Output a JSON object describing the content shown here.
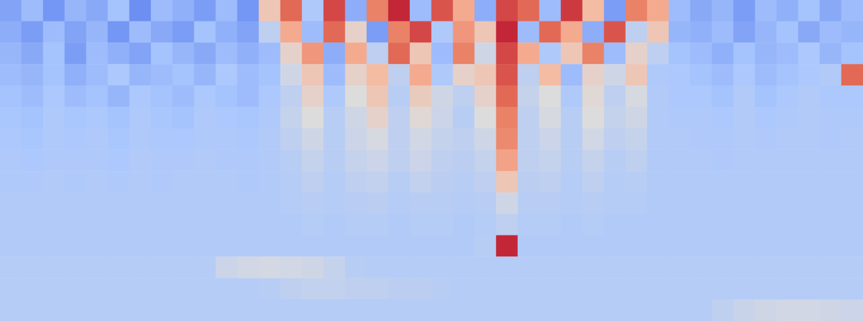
{
  "chart_data": {
    "type": "heatmap",
    "tick_labels": false,
    "zlim": [
      0,
      100
    ],
    "cells": [
      [
        22,
        30,
        18,
        28,
        24,
        32,
        16,
        30,
        26,
        20,
        30,
        18,
        60,
        85,
        35,
        90,
        25,
        80,
        95,
        30,
        88,
        70,
        25,
        90,
        85,
        30,
        92,
        65,
        20,
        80,
        70,
        30,
        24,
        28,
        20,
        30,
        26,
        32,
        24,
        30
      ],
      [
        25,
        20,
        30,
        22,
        28,
        18,
        30,
        24,
        20,
        32,
        26,
        22,
        40,
        70,
        30,
        85,
        55,
        20,
        80,
        90,
        35,
        75,
        60,
        95,
        30,
        85,
        70,
        25,
        88,
        40,
        60,
        28,
        26,
        30,
        22,
        28,
        32,
        24,
        30,
        28
      ],
      [
        28,
        24,
        32,
        20,
        30,
        26,
        22,
        32,
        28,
        24,
        30,
        26,
        30,
        55,
        75,
        25,
        70,
        40,
        85,
        60,
        30,
        80,
        45,
        90,
        70,
        35,
        60,
        80,
        30,
        55,
        40,
        32,
        30,
        26,
        32,
        28,
        30,
        34,
        28,
        32
      ],
      [
        30,
        28,
        32,
        26,
        30,
        34,
        28,
        30,
        32,
        28,
        34,
        30,
        32,
        45,
        60,
        30,
        55,
        65,
        40,
        70,
        35,
        55,
        60,
        88,
        40,
        65,
        30,
        55,
        45,
        60,
        35,
        34,
        32,
        30,
        34,
        30,
        32,
        34,
        36,
        85
      ],
      [
        32,
        30,
        34,
        30,
        32,
        28,
        34,
        32,
        30,
        34,
        32,
        30,
        34,
        40,
        55,
        35,
        50,
        60,
        38,
        58,
        45,
        40,
        55,
        85,
        42,
        50,
        35,
        52,
        40,
        48,
        36,
        34,
        34,
        32,
        36,
        32,
        34,
        36,
        34,
        34
      ],
      [
        33,
        32,
        35,
        33,
        34,
        32,
        35,
        33,
        32,
        35,
        34,
        33,
        35,
        42,
        50,
        38,
        45,
        55,
        40,
        52,
        44,
        38,
        50,
        80,
        40,
        48,
        38,
        50,
        42,
        45,
        36,
        35,
        35,
        34,
        36,
        34,
        35,
        36,
        35,
        35
      ],
      [
        34,
        33,
        35,
        34,
        35,
        33,
        35,
        34,
        34,
        35,
        35,
        34,
        36,
        40,
        45,
        38,
        44,
        48,
        40,
        46,
        42,
        40,
        45,
        78,
        40,
        44,
        38,
        46,
        40,
        42,
        36,
        36,
        35,
        35,
        36,
        35,
        36,
        36,
        35,
        36
      ],
      [
        35,
        34,
        35,
        35,
        35,
        34,
        36,
        35,
        35,
        36,
        35,
        35,
        36,
        38,
        42,
        38,
        42,
        44,
        40,
        44,
        40,
        39,
        42,
        72,
        40,
        42,
        38,
        42,
        38,
        40,
        36,
        36,
        36,
        35,
        36,
        36,
        36,
        36,
        36,
        36
      ],
      [
        35,
        35,
        36,
        35,
        36,
        35,
        36,
        35,
        36,
        36,
        36,
        35,
        36,
        37,
        40,
        37,
        40,
        41,
        38,
        41,
        39,
        38,
        40,
        60,
        39,
        40,
        37,
        40,
        37,
        38,
        36,
        36,
        36,
        36,
        36,
        36,
        36,
        36,
        36,
        36
      ],
      [
        36,
        36,
        36,
        36,
        36,
        36,
        36,
        36,
        36,
        36,
        36,
        36,
        36,
        37,
        38,
        37,
        38,
        39,
        37,
        38,
        38,
        37,
        38,
        45,
        38,
        38,
        37,
        38,
        37,
        37,
        36,
        36,
        36,
        36,
        36,
        36,
        36,
        36,
        36,
        36
      ],
      [
        36,
        36,
        36,
        36,
        36,
        36,
        36,
        36,
        36,
        36,
        36,
        36,
        36,
        36,
        37,
        36,
        37,
        37,
        36,
        37,
        37,
        36,
        37,
        40,
        37,
        37,
        36,
        37,
        36,
        36,
        36,
        36,
        36,
        36,
        36,
        36,
        36,
        36,
        36,
        36
      ],
      [
        36,
        36,
        36,
        36,
        36,
        36,
        36,
        36,
        36,
        36,
        36,
        36,
        36,
        36,
        36,
        36,
        36,
        36,
        36,
        36,
        36,
        36,
        38,
        95,
        36,
        36,
        36,
        36,
        36,
        36,
        36,
        36,
        36,
        36,
        36,
        36,
        36,
        36,
        36,
        36
      ],
      [
        37,
        37,
        37,
        37,
        37,
        37,
        37,
        37,
        37,
        37,
        44,
        46,
        47,
        46,
        45,
        42,
        38,
        37,
        37,
        37,
        37,
        37,
        37,
        37,
        37,
        37,
        37,
        37,
        37,
        37,
        37,
        37,
        37,
        37,
        37,
        37,
        37,
        37,
        37,
        37
      ],
      [
        37,
        37,
        37,
        37,
        37,
        37,
        37,
        37,
        37,
        37,
        37,
        37,
        38,
        40,
        41,
        41,
        40,
        40,
        39,
        39,
        38,
        37,
        37,
        37,
        37,
        37,
        37,
        37,
        37,
        37,
        37,
        37,
        37,
        37,
        37,
        37,
        37,
        37,
        37,
        37
      ],
      [
        37,
        37,
        37,
        37,
        37,
        37,
        37,
        37,
        37,
        37,
        37,
        37,
        37,
        37,
        37,
        37,
        37,
        37,
        37,
        37,
        37,
        37,
        37,
        37,
        37,
        37,
        37,
        37,
        37,
        37,
        37,
        37,
        37,
        40,
        43,
        45,
        46,
        46,
        45,
        44
      ]
    ]
  }
}
